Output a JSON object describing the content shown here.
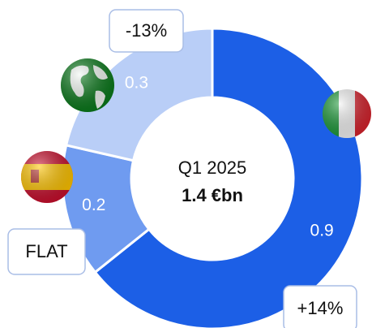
{
  "chart_data": {
    "type": "donut",
    "center_title": "Q1 2025",
    "center_value": "1.4 €bn",
    "values": [
      0.9,
      0.2,
      0.3
    ],
    "colors": [
      "#1c5fe6",
      "#6f9bf0",
      "#b9cef7"
    ],
    "change_labels": [
      "+14%",
      "FLAT",
      "-13%"
    ]
  }
}
